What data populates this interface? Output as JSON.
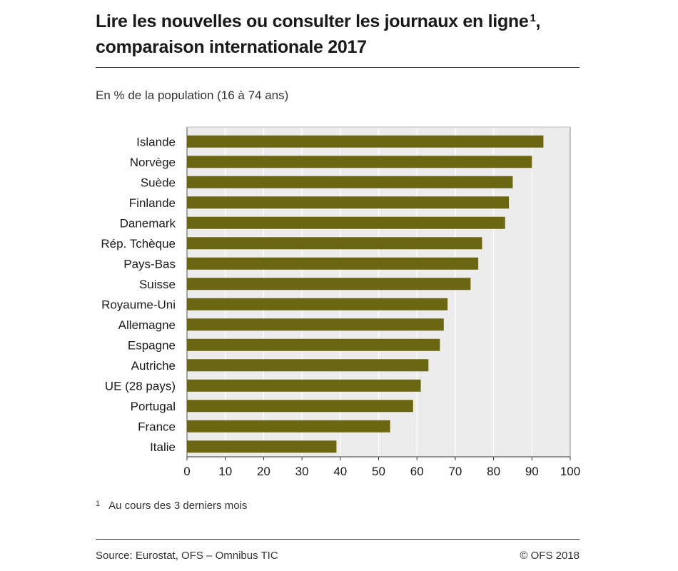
{
  "title_line1": "Lire les nouvelles ou consulter les journaux en ligne",
  "title_note_marker": "1",
  "title_comma": ",",
  "title_line2": "comparaison internationale 2017",
  "subtitle": "En % de la population (16 à 74 ans)",
  "footnote": {
    "marker": "1",
    "text": "Au cours des 3 derniers mois"
  },
  "source": "Source: Eurostat, OFS – Omnibus TIC",
  "copyright": "© OFS 2018",
  "colors": {
    "bar": "#6b6612",
    "plot_bg": "#ececec",
    "grid": "#ffffff"
  },
  "chart_data": {
    "type": "bar",
    "orientation": "horizontal",
    "categories": [
      "Islande",
      "Norvège",
      "Suède",
      "Finlande",
      "Danemark",
      "Rép. Tchèque",
      "Pays-Bas",
      "Suisse",
      "Royaume-Uni",
      "Allemagne",
      "Espagne",
      "Autriche",
      "UE (28 pays)",
      "Portugal",
      "France",
      "Italie"
    ],
    "values": [
      93,
      90,
      85,
      84,
      83,
      77,
      76,
      74,
      68,
      67,
      66,
      63,
      61,
      59,
      53,
      39
    ],
    "xlim": [
      0,
      100
    ],
    "xticks": [
      "0",
      "10",
      "20",
      "30",
      "40",
      "50",
      "60",
      "70",
      "80",
      "90",
      "100"
    ],
    "grid": true,
    "legend": "none"
  }
}
